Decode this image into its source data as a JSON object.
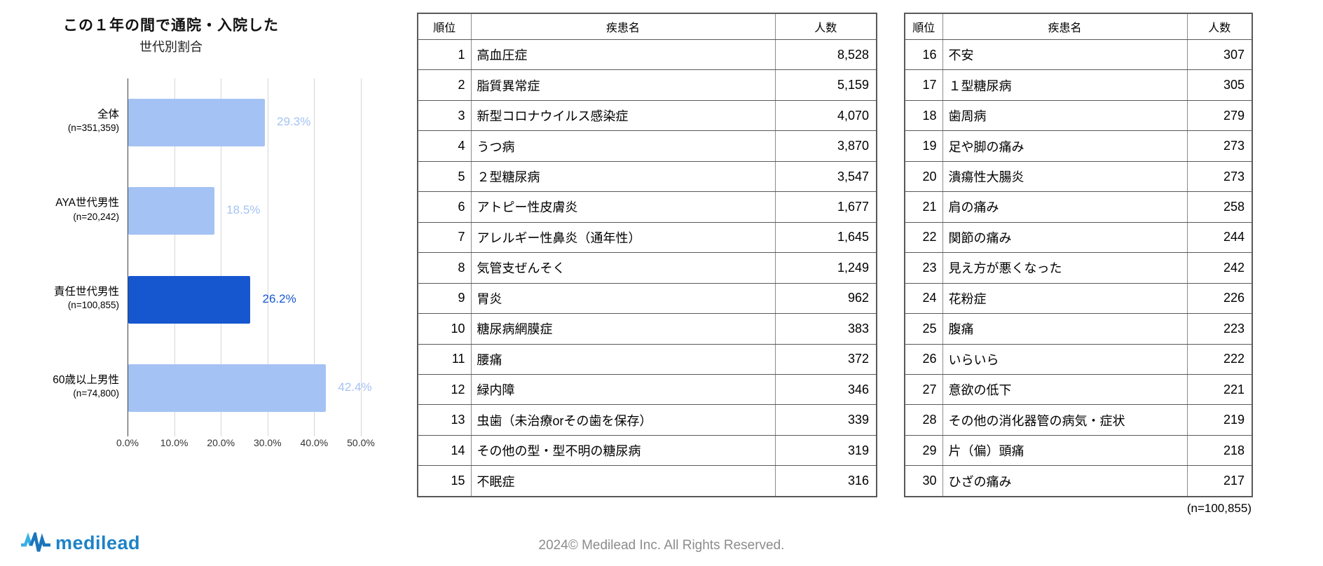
{
  "chart_data": {
    "type": "bar",
    "orientation": "horizontal",
    "title": "この１年の間で通院・入院した",
    "subtitle": "世代別割合",
    "categories": [
      "全体",
      "AYA世代男性",
      "責任世代男性",
      "60歳以上男性"
    ],
    "category_ns": [
      "(n=351,359)",
      "(n=20,242)",
      "(n=100,855)",
      "(n=74,800)"
    ],
    "values": [
      29.3,
      18.5,
      26.2,
      42.4
    ],
    "value_labels": [
      "29.3%",
      "18.5%",
      "26.2%",
      "42.4%"
    ],
    "emphasized_index": 2,
    "xlim": [
      0,
      50
    ],
    "x_ticks": [
      "0.0%",
      "10.0%",
      "20.0%",
      "30.0%",
      "40.0%",
      "50.0%"
    ],
    "grid": true,
    "legend": "none",
    "bar_color": "#a4c2f4",
    "emphasis_color": "#1657d0"
  },
  "tables": [
    {
      "headers": [
        "順位",
        "疾患名",
        "人数"
      ],
      "rows": [
        [
          "1",
          "高血圧症",
          "8,528"
        ],
        [
          "2",
          "脂質異常症",
          "5,159"
        ],
        [
          "3",
          "新型コロナウイルス感染症",
          "4,070"
        ],
        [
          "4",
          "うつ病",
          "3,870"
        ],
        [
          "5",
          "２型糖尿病",
          "3,547"
        ],
        [
          "6",
          "アトピー性皮膚炎",
          "1,677"
        ],
        [
          "7",
          "アレルギー性鼻炎（通年性）",
          "1,645"
        ],
        [
          "8",
          "気管支ぜんそく",
          "1,249"
        ],
        [
          "9",
          "胃炎",
          "962"
        ],
        [
          "10",
          "糖尿病網膜症",
          "383"
        ],
        [
          "11",
          "腰痛",
          "372"
        ],
        [
          "12",
          "緑内障",
          "346"
        ],
        [
          "13",
          "虫歯（未治療orその歯を保存）",
          "339"
        ],
        [
          "14",
          "その他の型・型不明の糖尿病",
          "319"
        ],
        [
          "15",
          "不眠症",
          "316"
        ]
      ]
    },
    {
      "headers": [
        "順位",
        "疾患名",
        "人数"
      ],
      "rows": [
        [
          "16",
          "不安",
          "307"
        ],
        [
          "17",
          "１型糖尿病",
          "305"
        ],
        [
          "18",
          "歯周病",
          "279"
        ],
        [
          "19",
          "足や脚の痛み",
          "273"
        ],
        [
          "20",
          "潰瘍性大腸炎",
          "273"
        ],
        [
          "21",
          "肩の痛み",
          "258"
        ],
        [
          "22",
          "関節の痛み",
          "244"
        ],
        [
          "23",
          "見え方が悪くなった",
          "242"
        ],
        [
          "24",
          "花粉症",
          "226"
        ],
        [
          "25",
          "腹痛",
          "223"
        ],
        [
          "26",
          "いらいら",
          "222"
        ],
        [
          "27",
          "意欲の低下",
          "221"
        ],
        [
          "28",
          "その他の消化器管の病気・症状",
          "219"
        ],
        [
          "29",
          "片（偏）頭痛",
          "218"
        ],
        [
          "30",
          "ひざの痛み",
          "217"
        ]
      ]
    }
  ],
  "note": "(n=100,855)",
  "footer": {
    "logo_text": "medilead",
    "copyright": "2024© Medilead Inc. All Rights Reserved."
  }
}
